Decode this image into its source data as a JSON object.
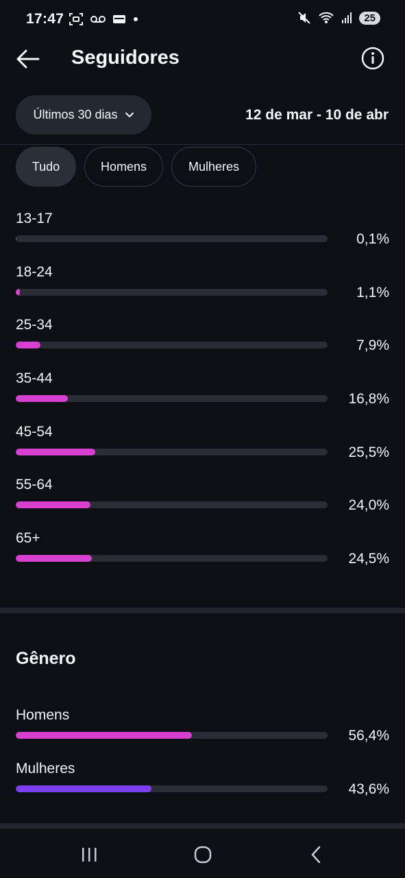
{
  "status": {
    "time": "17:47",
    "battery": "25",
    "left_icons": [
      "screenshot-icon",
      "voicemail-icon",
      "wallet-icon",
      "dot-icon"
    ],
    "right_icons": [
      "mute-icon",
      "wifi-icon",
      "signal-icon"
    ]
  },
  "header": {
    "title": "Seguidores"
  },
  "filter": {
    "range_label": "Últimos 30 dias",
    "date_range": "12 de mar - 10 de abr"
  },
  "chips": [
    {
      "label": "Tudo",
      "active": true
    },
    {
      "label": "Homens",
      "active": false
    },
    {
      "label": "Mulheres",
      "active": false
    }
  ],
  "age": [
    {
      "label": "13-17",
      "value": "0,1%",
      "percent": 0.1
    },
    {
      "label": "18-24",
      "value": "1,1%",
      "percent": 1.1
    },
    {
      "label": "25-34",
      "value": "7,9%",
      "percent": 7.9
    },
    {
      "label": "35-44",
      "value": "16,8%",
      "percent": 16.8
    },
    {
      "label": "45-54",
      "value": "25,5%",
      "percent": 25.5
    },
    {
      "label": "55-64",
      "value": "24,0%",
      "percent": 24.0
    },
    {
      "label": "65+",
      "value": "24,5%",
      "percent": 24.5
    }
  ],
  "gender": {
    "title": "Gênero",
    "items": [
      {
        "label": "Homens",
        "value": "56,4%",
        "percent": 56.4,
        "color": "#d63fd0"
      },
      {
        "label": "Mulheres",
        "value": "43,6%",
        "percent": 43.6,
        "color": "#7b3ff0"
      }
    ]
  },
  "colors": {
    "background": "#0c0f14",
    "accent_pink": "#d63fd0",
    "accent_purple": "#7b3ff0",
    "track": "#2a2d33"
  }
}
